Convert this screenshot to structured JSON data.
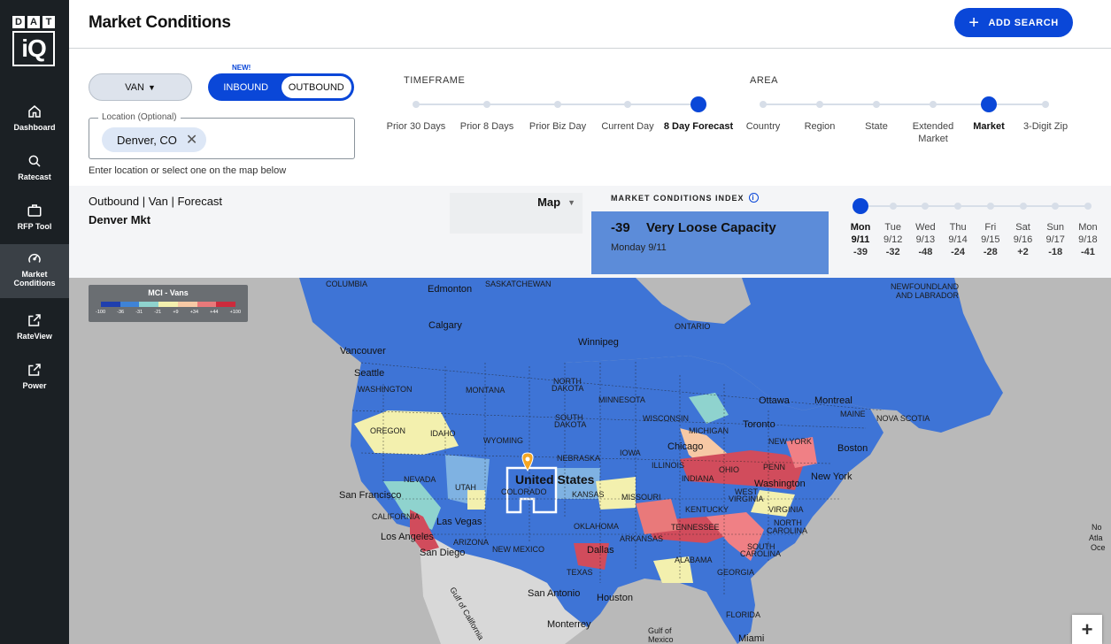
{
  "sidebar": {
    "logo_top": [
      "D",
      "A",
      "T"
    ],
    "logo_bottom": "iQ",
    "items": [
      {
        "label": "Dashboard",
        "icon": "home-icon"
      },
      {
        "label": "Ratecast",
        "icon": "search-icon"
      },
      {
        "label": "RFP Tool",
        "icon": "briefcase-icon"
      },
      {
        "label": "Market Conditions",
        "icon": "gauge-icon",
        "active": true
      },
      {
        "label": "RateView",
        "icon": "external-link-icon"
      },
      {
        "label": "Power",
        "icon": "external-link-icon"
      }
    ]
  },
  "header": {
    "title": "Market Conditions",
    "add_search_label": "ADD SEARCH"
  },
  "controls": {
    "equipment_label": "VAN",
    "new_badge": "NEW!",
    "inbound_label": "INBOUND",
    "outbound_label": "OUTBOUND",
    "location_legend": "Location (Optional)",
    "location_value": "Denver, CO",
    "location_hint": "Enter location or select one on the map below"
  },
  "timeframe": {
    "label": "TIMEFRAME",
    "options": [
      "Prior 30 Days",
      "Prior 8 Days",
      "Prior Biz Day",
      "Current Day",
      "8 Day Forecast"
    ],
    "selected_index": 4
  },
  "area": {
    "label": "AREA",
    "options": [
      "Country",
      "Region",
      "State",
      "Extended Market",
      "Market",
      "3-Digit Zip"
    ],
    "selected_index": 4
  },
  "summary": {
    "subtitle": "Outbound | Van | Forecast",
    "market": "Denver Mkt",
    "view_select": "Map"
  },
  "mci": {
    "heading": "MARKET CONDITIONS INDEX",
    "value": "-39",
    "label": "Very Loose Capacity",
    "date": "Monday 9/11",
    "card_color": "#5c8cd9"
  },
  "days": [
    {
      "day": "Mon",
      "date": "9/11",
      "value": "-39"
    },
    {
      "day": "Tue",
      "date": "9/12",
      "value": "-32"
    },
    {
      "day": "Wed",
      "date": "9/13",
      "value": "-48"
    },
    {
      "day": "Thu",
      "date": "9/14",
      "value": "-24"
    },
    {
      "day": "Fri",
      "date": "9/15",
      "value": "-28"
    },
    {
      "day": "Sat",
      "date": "9/16",
      "value": "+2"
    },
    {
      "day": "Sun",
      "date": "9/17",
      "value": "-18"
    },
    {
      "day": "Mon",
      "date": "9/18",
      "value": "-41"
    }
  ],
  "days_selected_index": 0,
  "map": {
    "legend_title": "MCI - Vans",
    "legend_ticks": [
      "-100",
      "-36",
      "-31",
      "-21",
      "+9",
      "+34",
      "+44",
      "+100"
    ],
    "legend_colors": [
      "#1f3fae",
      "#3f83d6",
      "#8fd3ce",
      "#f3f0ae",
      "#f7c9a5",
      "#e9797a",
      "#cc2b3c"
    ],
    "country_label": "United States",
    "labels": {
      "columbia": "COLUMBIA",
      "edmonton": "Edmonton",
      "saskatchewan": "SASKATCHEWAN",
      "newfoundland": "NEWFOUNDLAND",
      "and_labrador": "AND LABRADOR",
      "ontario": "ONTARIO",
      "calgary": "Calgary",
      "winnipeg": "Winnipeg",
      "vancouver": "Vancouver",
      "seattle": "Seattle",
      "washington_state": "WASHINGTON",
      "montana": "MONTANA",
      "north": "NORTH",
      "dakota": "DAKOTA",
      "minnesota": "MINNESOTA",
      "ottawa": "Ottawa",
      "montreal": "Montreal",
      "maine": "MAINE",
      "nova_scotia": "NOVA SCOTIA",
      "oregon": "OREGON",
      "idaho": "IDAHO",
      "south": "SOUTH",
      "wisconsin": "WISCONSIN",
      "toronto": "Toronto",
      "michigan": "MICHIGAN",
      "wyoming": "WYOMING",
      "new_york_state": "NEW YORK",
      "boston": "Boston",
      "iowa": "IOWA",
      "chicago": "Chicago",
      "nebraska": "NEBRASKA",
      "penn": "PENN",
      "nevada": "NEVADA",
      "utah": "UTAH",
      "illinois": "ILLINOIS",
      "indiana": "INDIANA",
      "ohio": "OHIO",
      "washington_dc": "Washington",
      "new_york_city": "New York",
      "san_francisco": "San Francisco",
      "colorado": "COLORADO",
      "kansas": "KANSAS",
      "missouri": "MISSOURI",
      "west": "WEST",
      "virginia": "VIRGINIA",
      "california": "CALIFORNIA",
      "kentucky": "KENTUCKY",
      "las_vegas": "Las Vegas",
      "oklahoma": "OKLAHOMA",
      "tennessee": "TENNESSEE",
      "carolina": "CAROLINA",
      "los_angeles": "Los Angeles",
      "arizona": "ARIZONA",
      "arkansas": "ARKANSAS",
      "san_diego": "San Diego",
      "new_mexico": "NEW MEXICO",
      "dallas": "Dallas",
      "alabama": "ALABAMA",
      "texas": "TEXAS",
      "georgia": "GEORGIA",
      "san_antonio": "San Antonio",
      "houston": "Houston",
      "gulf_of_california": "Gulf of California",
      "florida": "FLORIDA",
      "gulf_of": "Gulf of",
      "mexico": "Mexico",
      "monterrey": "Monterrey",
      "miami": "Miami",
      "north_atlantic": "No",
      "atla": "Atla",
      "oce": "Oce"
    },
    "zoom_in": "+"
  }
}
